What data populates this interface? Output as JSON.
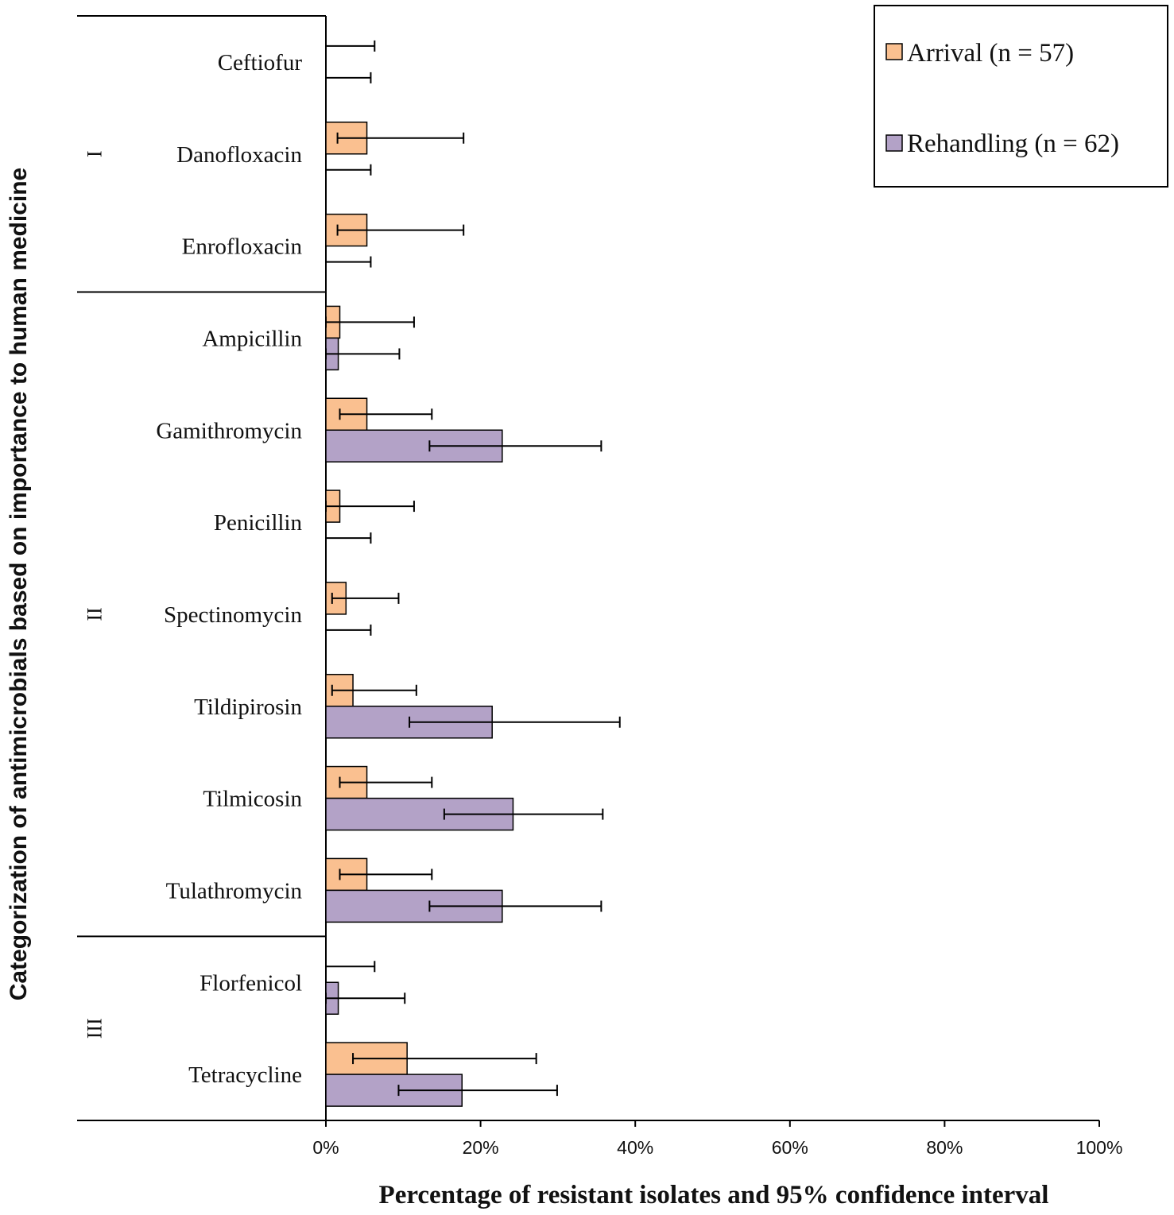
{
  "chart_data": {
    "type": "bar",
    "orientation": "horizontal",
    "xlabel": "Percentage of resistant isolates and 95% confidence interval",
    "ylabel": "Categorization of antimicrobials based on importance to human medicine",
    "xlim": [
      0,
      100
    ],
    "x_ticks": [
      "0%",
      "20%",
      "40%",
      "60%",
      "80%",
      "100%"
    ],
    "x_tick_values": [
      0,
      20,
      40,
      60,
      80,
      100
    ],
    "legend_position": "top-right",
    "categories": [
      "Ceftiofur",
      "Danofloxacin",
      "Enrofloxacin",
      "Ampicillin",
      "Gamithromycin",
      "Penicillin",
      "Spectinomycin",
      "Tildipirosin",
      "Tilmicosin",
      "Tulathromycin",
      "Florfenicol",
      "Tetracycline"
    ],
    "groups": [
      {
        "label": "I",
        "categories": [
          "Ceftiofur",
          "Danofloxacin",
          "Enrofloxacin"
        ]
      },
      {
        "label": "II",
        "categories": [
          "Ampicillin",
          "Gamithromycin",
          "Penicillin",
          "Spectinomycin",
          "Tildipirosin",
          "Tilmicosin",
          "Tulathromycin"
        ]
      },
      {
        "label": "III",
        "categories": [
          "Florfenicol",
          "Tetracycline"
        ]
      }
    ],
    "series": [
      {
        "name": "Arrival (n = 57)",
        "color": "#FAC090",
        "values": [
          0,
          5.3,
          5.3,
          1.8,
          5.3,
          1.8,
          2.6,
          3.5,
          5.3,
          5.3,
          0,
          10.5
        ],
        "ci_low": [
          0,
          1.5,
          1.5,
          0,
          1.8,
          0,
          0.8,
          0.8,
          1.8,
          1.8,
          0,
          3.5
        ],
        "ci_high": [
          6.3,
          17.8,
          17.8,
          11.4,
          13.7,
          11.4,
          9.4,
          11.7,
          13.7,
          13.7,
          6.3,
          27.2
        ]
      },
      {
        "name": "Rehandling (n = 62)",
        "color": "#B3A2C7",
        "values": [
          0,
          0,
          0,
          1.6,
          22.8,
          0,
          0,
          21.5,
          24.2,
          22.8,
          1.6,
          17.6
        ],
        "ci_low": [
          0,
          0,
          0,
          0,
          13.4,
          0,
          0,
          10.8,
          15.3,
          13.4,
          0,
          9.4
        ],
        "ci_high": [
          5.8,
          5.8,
          5.8,
          9.5,
          35.6,
          5.8,
          5.8,
          38.0,
          35.8,
          35.6,
          10.2,
          29.9
        ]
      }
    ]
  }
}
